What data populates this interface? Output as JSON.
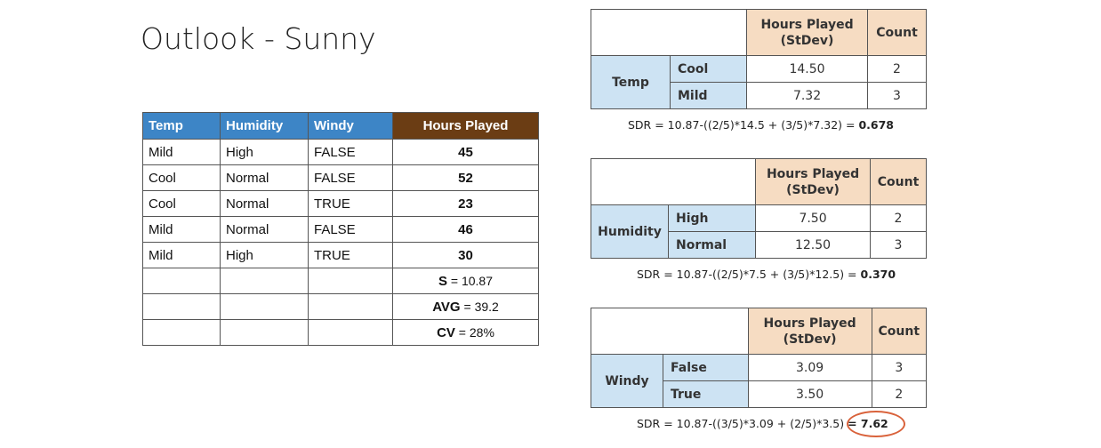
{
  "title": "Outlook - Sunny",
  "main_table": {
    "headers": [
      "Temp",
      "Humidity",
      "Windy",
      "Hours Played"
    ],
    "rows": [
      [
        "Mild",
        "High",
        "FALSE",
        "45"
      ],
      [
        "Cool",
        "Normal",
        "FALSE",
        "52"
      ],
      [
        "Cool",
        "Normal",
        "TRUE",
        "23"
      ],
      [
        "Mild",
        "Normal",
        "FALSE",
        "46"
      ],
      [
        "Mild",
        "High",
        "TRUE",
        "30"
      ]
    ],
    "stats": [
      {
        "label": "S",
        "sep": " = ",
        "value": "10.87"
      },
      {
        "label": "AVG",
        "sep": " = ",
        "value": "39.2"
      },
      {
        "label": "CV",
        "sep": " = ",
        "value": "28%"
      }
    ]
  },
  "sdr_tables": [
    {
      "col_header": "Hours Played (StDev)",
      "count_header": "Count",
      "attribute": "Temp",
      "rows": [
        {
          "value": "Cool",
          "stdev": "14.50",
          "count": "2"
        },
        {
          "value": "Mild",
          "stdev": "7.32",
          "count": "3"
        }
      ],
      "formula": "SDR = 10.87-((2/5)*14.5 + (3/5)*7.32) = ",
      "result": "0.678"
    },
    {
      "col_header": "Hours Played (StDev)",
      "count_header": "Count",
      "attribute": "Humidity",
      "rows": [
        {
          "value": "High",
          "stdev": "7.50",
          "count": "2"
        },
        {
          "value": "Normal",
          "stdev": "12.50",
          "count": "3"
        }
      ],
      "formula": "SDR = 10.87-((2/5)*7.5 + (3/5)*12.5) = ",
      "result": "0.370"
    },
    {
      "col_header": "Hours Played (StDev)",
      "count_header": "Count",
      "attribute": "Windy",
      "rows": [
        {
          "value": "False",
          "stdev": "3.09",
          "count": "3"
        },
        {
          "value": "True",
          "stdev": "3.50",
          "count": "2"
        }
      ],
      "formula": "SDR = 10.87-((3/5)*3.09 + (2/5)*3.5) ",
      "result": "= 7.62"
    }
  ],
  "highlight_color": "#d9623b"
}
